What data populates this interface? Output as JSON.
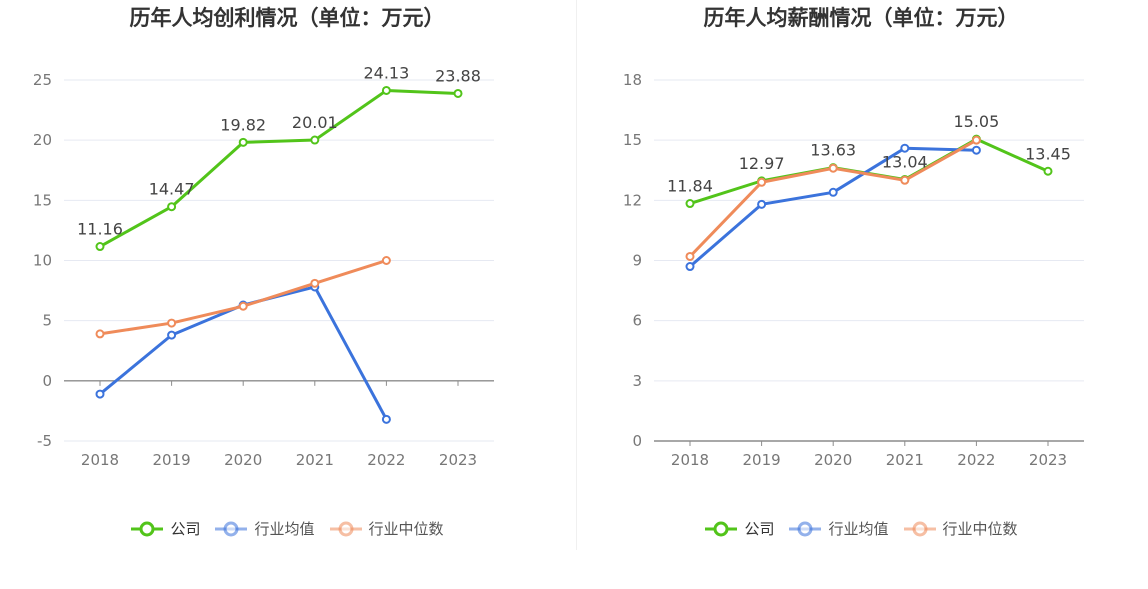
{
  "chart_data": [
    {
      "type": "line",
      "title": "历年人均创利情况（单位：万元）",
      "categories": [
        "2018",
        "2019",
        "2020",
        "2021",
        "2022",
        "2023"
      ],
      "ylim": [
        -5,
        25
      ],
      "yticks": [
        -5,
        0,
        5,
        10,
        15,
        20,
        25
      ],
      "yticklabels": [
        "-5",
        "0",
        "5",
        "10",
        "15",
        "20",
        "25"
      ],
      "grid": true,
      "legend_position": "bottom-center",
      "series": [
        {
          "name": "公司",
          "color": "#52c41a",
          "values": [
            11.16,
            14.47,
            19.82,
            20.01,
            24.13,
            23.88
          ],
          "labels": [
            "11.16",
            "14.47",
            "19.82",
            "20.01",
            "24.13",
            "23.88"
          ]
        },
        {
          "name": "行业均值",
          "color": "#3b73dc",
          "values": [
            -1.1,
            3.8,
            6.3,
            7.8,
            -3.2,
            null
          ]
        },
        {
          "name": "行业中位数",
          "color": "#ef8b5a",
          "values": [
            3.9,
            4.8,
            6.2,
            8.1,
            10.0,
            null
          ]
        }
      ]
    },
    {
      "type": "line",
      "title": "历年人均薪酬情况（单位：万元）",
      "categories": [
        "2018",
        "2019",
        "2020",
        "2021",
        "2022",
        "2023"
      ],
      "ylim": [
        0,
        18
      ],
      "yticks": [
        0,
        3,
        6,
        9,
        12,
        15,
        18
      ],
      "yticklabels": [
        "0",
        "3",
        "6",
        "9",
        "12",
        "15",
        "18"
      ],
      "grid": true,
      "legend_position": "bottom-center",
      "series": [
        {
          "name": "公司",
          "color": "#52c41a",
          "values": [
            11.84,
            12.97,
            13.63,
            13.04,
            15.05,
            13.45
          ],
          "labels": [
            "11.84",
            "12.97",
            "13.63",
            "13.04",
            "15.05",
            "13.45"
          ]
        },
        {
          "name": "行业均值",
          "color": "#3b73dc",
          "values": [
            8.7,
            11.8,
            12.4,
            14.6,
            14.5,
            null
          ]
        },
        {
          "name": "行业中位数",
          "color": "#ef8b5a",
          "values": [
            9.2,
            12.9,
            13.6,
            13.0,
            15.0,
            null
          ]
        }
      ]
    }
  ]
}
